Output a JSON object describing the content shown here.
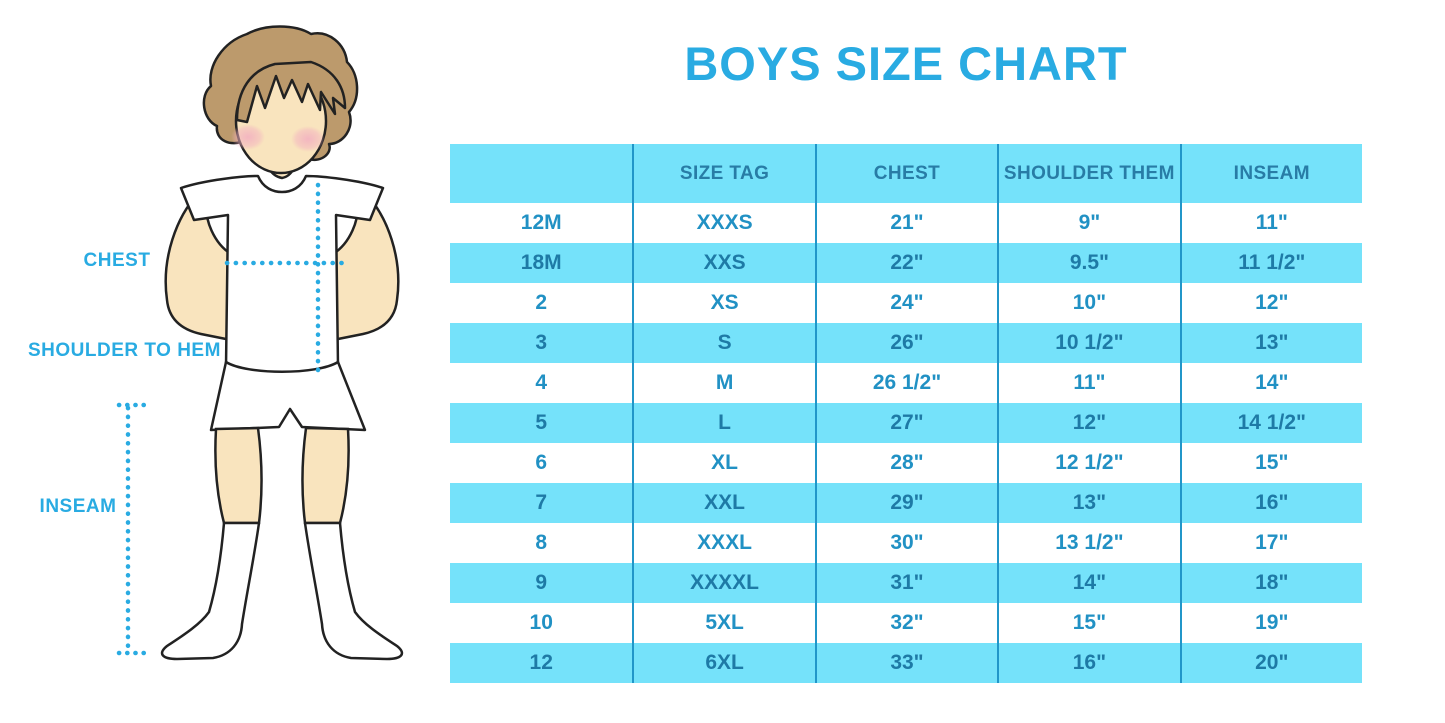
{
  "title": "BOYS SIZE CHART",
  "figure": {
    "labels": {
      "chest": "CHEST",
      "shoulder_to_hem": "SHOULDER TO HEM",
      "inseam": "INSEAM"
    }
  },
  "colors": {
    "accent_blue": "#29ABE2",
    "row_cyan": "#75E2FA",
    "divider_blue": "#2196C9",
    "header_text": "#287CA6",
    "white_row_text": "#2191C4",
    "cyan_row_text": "#1E7AA6",
    "skin": "#F9E4BE",
    "hair": "#BC9A6C",
    "blush": "#F2AEC0"
  },
  "chart_data": {
    "type": "table",
    "title": "BOYS SIZE CHART",
    "columns": [
      "",
      "SIZE TAG",
      "CHEST",
      "SHOULDER THEM",
      "INSEAM"
    ],
    "rows": [
      [
        "12M",
        "XXXS",
        "21\"",
        "9\"",
        "11\""
      ],
      [
        "18M",
        "XXS",
        "22\"",
        "9.5\"",
        "11 1/2\""
      ],
      [
        "2",
        "XS",
        "24\"",
        "10\"",
        "12\""
      ],
      [
        "3",
        "S",
        "26\"",
        "10 1/2\"",
        "13\""
      ],
      [
        "4",
        "M",
        "26 1/2\"",
        "11\"",
        "14\""
      ],
      [
        "5",
        "L",
        "27\"",
        "12\"",
        "14 1/2\""
      ],
      [
        "6",
        "XL",
        "28\"",
        "12 1/2\"",
        "15\""
      ],
      [
        "7",
        "XXL",
        "29\"",
        "13\"",
        "16\""
      ],
      [
        "8",
        "XXXL",
        "30\"",
        "13 1/2\"",
        "17\""
      ],
      [
        "9",
        "XXXXL",
        "31\"",
        "14\"",
        "18\""
      ],
      [
        "10",
        "5XL",
        "32\"",
        "15\"",
        "19\""
      ],
      [
        "12",
        "6XL",
        "33\"",
        "16\"",
        "20\""
      ]
    ],
    "row_striping": "first row white, alternating light cyan",
    "legend_position": "none",
    "grid": "vertical column dividers only"
  }
}
